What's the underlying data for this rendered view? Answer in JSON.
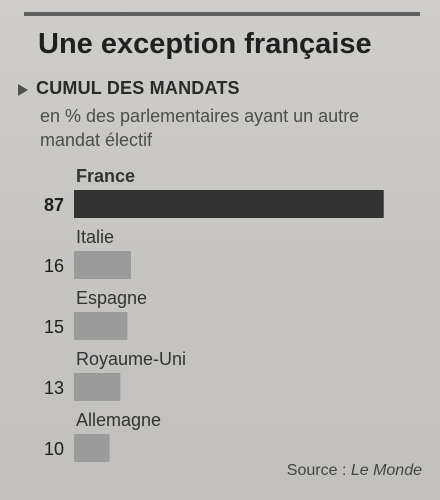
{
  "header": {
    "title": "Une exception française",
    "section_title": "CUMUL DES MANDATS",
    "subtitle": "en % des parlementaires ayant un autre mandat électif"
  },
  "chart_data": {
    "type": "bar",
    "categories": [
      "France",
      "Italie",
      "Espagne",
      "Royaume-Uni",
      "Allemagne"
    ],
    "values": [
      87,
      16,
      15,
      13,
      10
    ],
    "title": "CUMUL DES MANDATS",
    "subtitle": "en % des parlementaires ayant un autre mandat électif",
    "xlabel": "",
    "ylabel": "",
    "ylim": [
      0,
      100
    ],
    "grid": false,
    "legend": "none",
    "colors": {
      "highlight": "#333333",
      "others": "#9b9b9b",
      "background": "#c7c5c2"
    }
  },
  "footer": {
    "source_prefix": "Source : ",
    "source_name": "Le Monde"
  }
}
